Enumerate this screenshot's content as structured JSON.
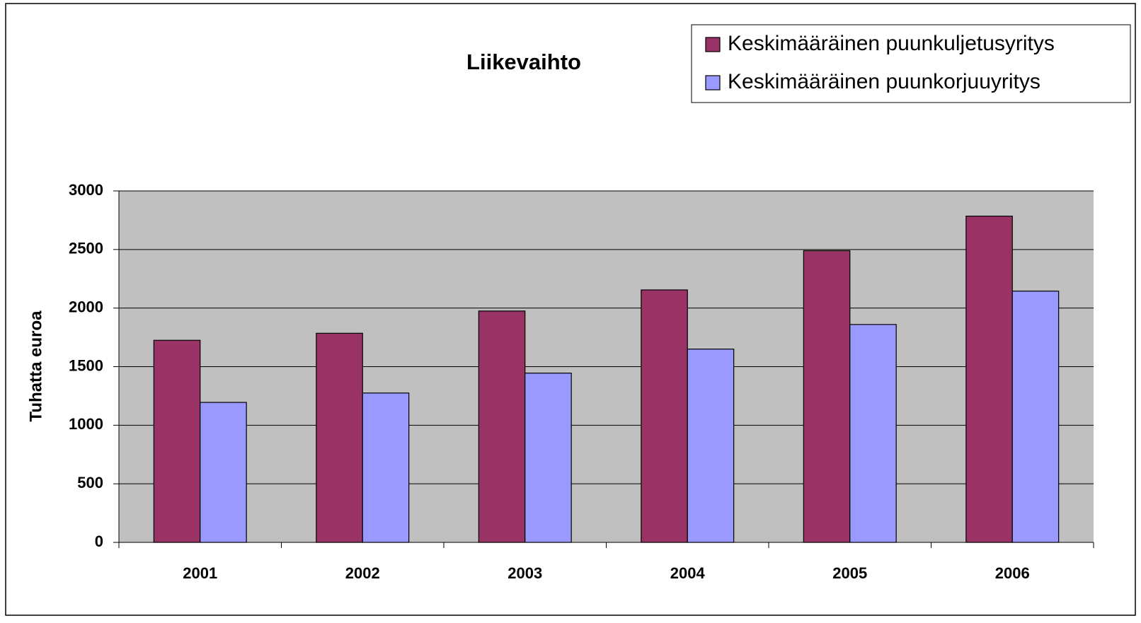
{
  "chart_data": {
    "type": "bar",
    "title": "Liikevaihto",
    "y_label": "Tuhatta euroa",
    "categories": [
      "2001",
      "2002",
      "2003",
      "2004",
      "2005",
      "2006"
    ],
    "series": [
      {
        "name": "Keskimääräinen puunkuljetusyritys",
        "color": "#993366",
        "values": [
          1725,
          1785,
          1975,
          2155,
          2490,
          2785
        ]
      },
      {
        "name": "Keskimääräinen puunkorjuuyritys",
        "color": "#9999ff",
        "values": [
          1195,
          1275,
          1445,
          1650,
          1860,
          2145
        ]
      }
    ],
    "ylim": [
      0,
      3000
    ],
    "yticks": [
      0,
      500,
      1000,
      1500,
      2000,
      2500,
      3000
    ],
    "grid": true,
    "legend": "top-right"
  }
}
